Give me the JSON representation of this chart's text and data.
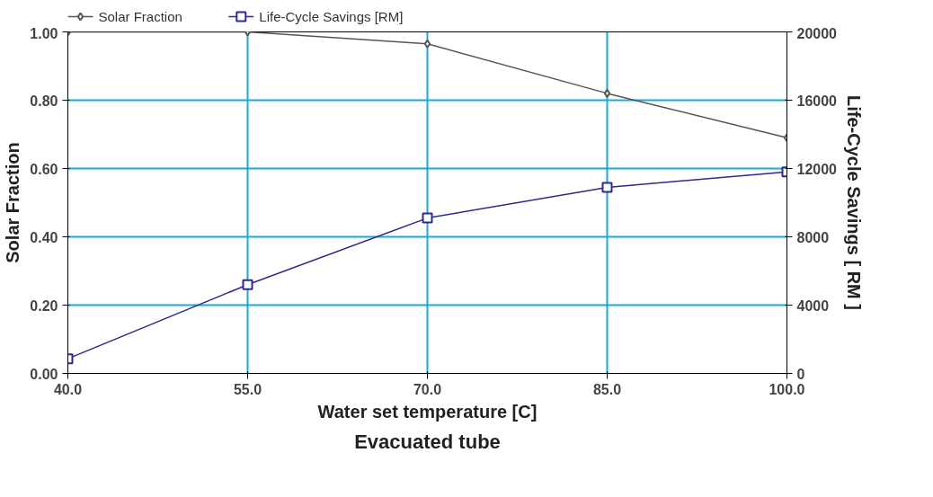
{
  "chart_data": {
    "type": "line",
    "xlabel": "Water set temperature [C]",
    "ylabel": "Solar Fraction",
    "y2label": "Life-Cycle Savings [ RM ]",
    "annotations": [
      "Evacuated tube"
    ],
    "x": [
      40,
      55,
      70,
      85,
      100
    ],
    "series": [
      {
        "name": "Solar Fraction",
        "color": "#555555",
        "marker": "diamond",
        "values": [
          1.0,
          1.0,
          0.965,
          0.82,
          0.69
        ]
      },
      {
        "name": "Life-Cycle Savings [RM]",
        "color": "#2a2a8f",
        "marker": "square",
        "axis": "y2",
        "values": [
          860,
          5200,
          9100,
          10900,
          11800
        ]
      }
    ],
    "xlim": [
      40,
      100
    ],
    "xticks": [
      {
        "value": 40,
        "label": "40.0"
      },
      {
        "value": 55,
        "label": "55.0"
      },
      {
        "value": 70,
        "label": "70.0"
      },
      {
        "value": 85,
        "label": "85.0"
      },
      {
        "value": 100,
        "label": "100.0"
      }
    ],
    "ylim": [
      0,
      1
    ],
    "yticks": [
      {
        "value": 0,
        "label": "0.00"
      },
      {
        "value": 0.2,
        "label": "0.20"
      },
      {
        "value": 0.4,
        "label": "0.40"
      },
      {
        "value": 0.6,
        "label": "0.60"
      },
      {
        "value": 0.8,
        "label": "0.80"
      },
      {
        "value": 1.0,
        "label": "1.00"
      }
    ],
    "y2lim": [
      0,
      20000
    ],
    "y2ticks": [
      0,
      4000,
      8000,
      12000,
      16000,
      20000
    ],
    "grid": true,
    "legend": "top"
  }
}
